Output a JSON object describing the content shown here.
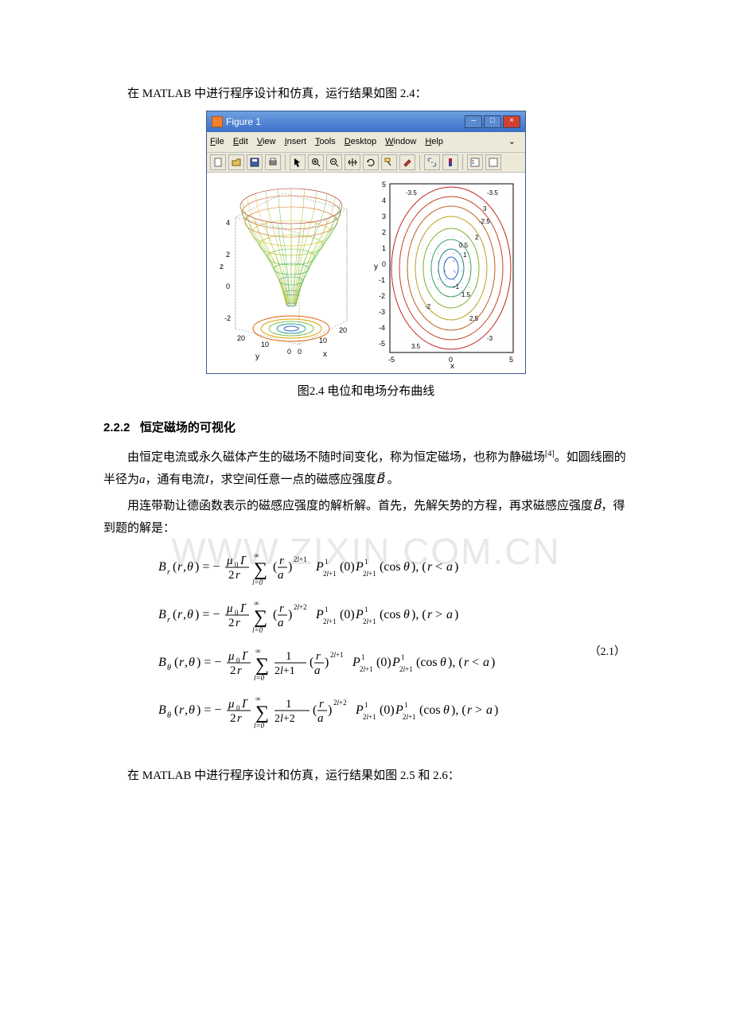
{
  "intro_line": "在 MATLAB 中进行程序设计和仿真，运行结果如图 2.4：",
  "figure_window": {
    "title": "Figure 1",
    "menus": [
      "File",
      "Edit",
      "View",
      "Insert",
      "Tools",
      "Desktop",
      "Window",
      "Help"
    ],
    "toolbar_icons": [
      "new",
      "open",
      "save",
      "print",
      "sep",
      "arrow",
      "zoom-in",
      "zoom-out",
      "pan",
      "rotate",
      "cursor",
      "brush",
      "sep",
      "link",
      "colorbar",
      "sep",
      "plot",
      "subplot"
    ]
  },
  "left_plot": {
    "type": "3d-surface-with-contours",
    "xlabel": "x",
    "ylabel": "y",
    "zlabel": "z",
    "x_ticks": [
      0,
      10,
      20
    ],
    "y_ticks": [
      0,
      10,
      20
    ],
    "z_ticks": [
      -2,
      0,
      2,
      4
    ],
    "zlim": [
      -2.5,
      4.5
    ],
    "mesh_colors": [
      "#b02020",
      "#e07020",
      "#e0c020",
      "#60c040",
      "#20a0c0",
      "#3040c0"
    ],
    "contour_colors": [
      "#e06000",
      "#e0a000",
      "#80c040",
      "#20a0a0",
      "#3060c0"
    ],
    "background_color": "#ffffff",
    "grid_color": "#cccccc",
    "mesh_size": 20
  },
  "right_plot": {
    "type": "contour-with-quiver",
    "xlabel": "x",
    "ylabel": "y",
    "xlim": [
      -5,
      5
    ],
    "ylim": [
      -5,
      5
    ],
    "x_ticks": [
      -5,
      0,
      5
    ],
    "y_ticks": [
      -5,
      -4,
      -3,
      -2,
      -1,
      0,
      1,
      2,
      3,
      4,
      5
    ],
    "contour_levels": [
      "0.5",
      "1",
      "1.5",
      "2",
      "2.5",
      "3",
      "3.5",
      "-3.5",
      "-3",
      "-2.5",
      "-2",
      "-1.5",
      "-1",
      "-0.5"
    ],
    "contour_colors": [
      "#c02020",
      "#c04020",
      "#c06020",
      "#c0a020",
      "#60a040",
      "#208080",
      "#2060c0"
    ],
    "arrow_color": "#3050c0",
    "label_color": "#000000",
    "label_fontsize": 8,
    "quiver_grid": 20
  },
  "figure_caption": "图2.4 电位和电场分布曲线",
  "section_number": "2.2.2",
  "section_title": "恒定磁场的可视化",
  "para1_pre": "由恒定电流或永久磁体产生的磁场不随时间变化，称为恒定磁场，也称为静磁场",
  "para1_cite": "[4]",
  "para1_post": "。如圆线圈的半径为",
  "para1_a": "a",
  "para1_mid1": "，通有电流",
  "para1_I": "I",
  "para1_mid2": "，求空间任意一点的磁感应强度",
  "para1_Bvec": "B⃗",
  "para1_end": " 。",
  "para2_pre": "用连带勒让德函数表示的磁感应强度的解析解。首先，先解矢势的方程，再求磁感应强度",
  "para2_Bvec": "B⃗",
  "para2_end": "，得到题的解是：",
  "equations": {
    "lines": [
      "B_r(r,θ) = − (μ₀I⃗ / 2r) Σ_{l=0}^{∞} (r/a)^{2l+1} P¹_{2l+1}(0) P¹_{2l+1}(cos θ), (r < a)",
      "B_r(r,θ) = − (μ₀I⃗ / 2r) Σ_{l=0}^{∞} (r/a)^{2l+2} P¹_{2l+1}(0) P¹_{2l+1}(cos θ), (r > a)",
      "B_θ(r,θ) = − (μ₀I⃗ / 2r) Σ_{l=0}^{∞} 1/(2l+1) (r/a)^{2l+1} P¹_{2l+1}(0) P¹_{2l+1}(cos θ), (r < a)",
      "B_θ(r,θ) = − (μ₀I⃗ / 2r) Σ_{l=0}^{∞} 1/(2l+2) (r/a)^{2l+2} P¹_{2l+1}(0) P¹_{2l+1}(cos θ), (r > a)"
    ],
    "label": "（2.1）"
  },
  "outro_line": "在 MATLAB 中进行程序设计和仿真，运行结果如图 2.5 和 2.6：",
  "watermark_text": "WWW.ZIXIN.COM.CN"
}
